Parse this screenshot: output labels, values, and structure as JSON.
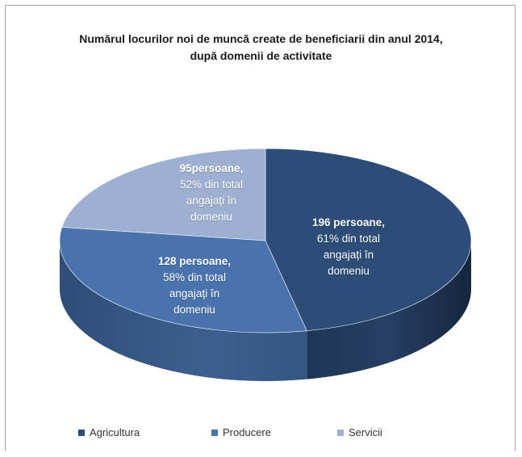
{
  "chart_data": {
    "type": "pie",
    "title_line1": "Numărul locurilor noi de muncă create de beneficiarii din anul 2014,",
    "title_line2": "după domenii de activitate",
    "slices": [
      {
        "name": "Agricultura",
        "value": 196,
        "color": "#2d4d78",
        "label_line1": "196 persoane,",
        "label_line2": "61% din total",
        "label_line3": "angajați în",
        "label_line4": "domeniu"
      },
      {
        "name": "Producere",
        "value": 128,
        "color": "#4a73ad",
        "label_line1": "128 persoane,",
        "label_line2": "58% din total",
        "label_line3": "angajați în",
        "label_line4": "domeniu"
      },
      {
        "name": "Servicii",
        "value": 95,
        "color": "#9eb0d1",
        "label_line1": "95persoane,",
        "label_line2": "52% din total",
        "label_line3": "angajați în",
        "label_line4": "domeniu"
      }
    ],
    "legend_position": "bottom"
  }
}
